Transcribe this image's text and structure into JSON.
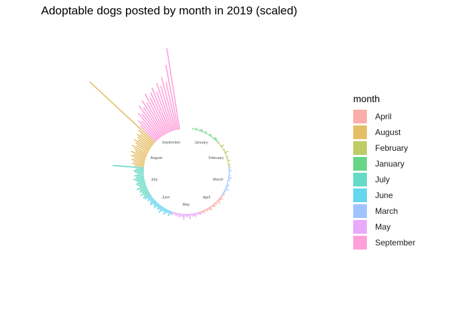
{
  "chart_data": {
    "type": "bar",
    "subtype": "circular-barplot",
    "title": "Adoptable dogs posted by month in 2019 (scaled)",
    "legend_title": "month",
    "legend_position": "right",
    "grid": false,
    "months": [
      "January",
      "February",
      "March",
      "April",
      "May",
      "June",
      "July",
      "August",
      "September"
    ],
    "legend": [
      {
        "label": "April",
        "color": "#F8766D"
      },
      {
        "label": "August",
        "color": "#D39200"
      },
      {
        "label": "February",
        "color": "#93AA00"
      },
      {
        "label": "January",
        "color": "#00BA38"
      },
      {
        "label": "July",
        "color": "#00C19F"
      },
      {
        "label": "June",
        "color": "#00B9E3"
      },
      {
        "label": "March",
        "color": "#619CFF"
      },
      {
        "label": "May",
        "color": "#DB72FB"
      },
      {
        "label": "September",
        "color": "#FF61C3"
      }
    ],
    "series": [
      {
        "name": "January",
        "values": [
          2,
          1,
          3,
          2,
          1,
          2,
          4,
          2,
          1,
          3,
          2,
          1,
          2,
          3,
          2,
          1,
          2,
          4,
          3,
          2
        ]
      },
      {
        "name": "February",
        "values": [
          2,
          3,
          1,
          2,
          5,
          2,
          1,
          3,
          2,
          6,
          2,
          1,
          3,
          2,
          2,
          4,
          1,
          2,
          3,
          2
        ]
      },
      {
        "name": "March",
        "values": [
          3,
          2,
          4,
          2,
          1,
          3,
          2,
          5,
          2,
          3,
          1,
          2,
          4,
          3,
          2,
          6,
          2,
          3,
          2,
          4
        ]
      },
      {
        "name": "April",
        "values": [
          3,
          2,
          5,
          4,
          3,
          6,
          2,
          4,
          3,
          5,
          3,
          2,
          6,
          4,
          3,
          4,
          2,
          5,
          3,
          4
        ]
      },
      {
        "name": "May",
        "values": [
          5,
          4,
          3,
          6,
          4,
          5,
          3,
          8,
          4,
          5,
          3,
          9,
          5,
          4,
          6,
          3,
          5,
          4,
          3,
          5
        ]
      },
      {
        "name": "June",
        "values": [
          5,
          8,
          4,
          6,
          9,
          5,
          7,
          10,
          6,
          8,
          5,
          9,
          7,
          6,
          10,
          8,
          6,
          9,
          7,
          11
        ]
      },
      {
        "name": "July",
        "values": [
          12,
          9,
          14,
          10,
          13,
          11,
          15,
          10,
          12,
          14,
          11,
          13,
          16,
          12,
          14,
          10,
          13,
          15,
          12,
          46
        ]
      },
      {
        "name": "August",
        "values": [
          14,
          18,
          16,
          20,
          17,
          22,
          19,
          24,
          18,
          21,
          26,
          20,
          23,
          27,
          22,
          25,
          28,
          24,
          30,
          130
        ]
      },
      {
        "name": "September",
        "values": [
          32,
          40,
          36,
          48,
          44,
          56,
          50,
          60,
          54,
          66,
          58,
          64,
          70,
          62,
          74,
          68,
          80,
          72,
          96,
          120
        ]
      }
    ]
  }
}
